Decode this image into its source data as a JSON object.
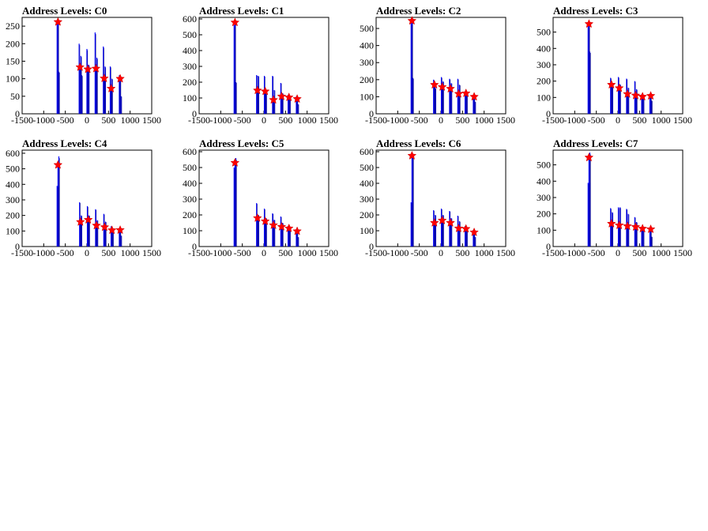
{
  "chart_data": [
    {
      "type": "line",
      "title": "Address Levels: C0",
      "xlim": [
        -1500,
        1500
      ],
      "ylim": [
        0,
        275
      ],
      "xticks": [
        -1500,
        -1000,
        -500,
        0,
        500,
        1000,
        1500
      ],
      "yticks": [
        0,
        50,
        100,
        150,
        200,
        250
      ],
      "peaks": [
        [
          -670,
          262
        ],
        [
          -160,
          133
        ],
        [
          20,
          127
        ],
        [
          210,
          129
        ],
        [
          400,
          101
        ],
        [
          560,
          72
        ],
        [
          770,
          100
        ]
      ],
      "spikes": [
        [
          -690,
          255
        ],
        [
          -670,
          262
        ],
        [
          -650,
          120
        ],
        [
          -180,
          200
        ],
        [
          -160,
          133
        ],
        [
          -140,
          165
        ],
        [
          -120,
          110
        ],
        [
          0,
          185
        ],
        [
          20,
          127
        ],
        [
          40,
          140
        ],
        [
          190,
          232
        ],
        [
          210,
          129
        ],
        [
          230,
          160
        ],
        [
          380,
          192
        ],
        [
          400,
          101
        ],
        [
          420,
          135
        ],
        [
          540,
          135
        ],
        [
          560,
          72
        ],
        [
          580,
          100
        ],
        [
          750,
          110
        ],
        [
          770,
          100
        ],
        [
          790,
          50
        ]
      ]
    },
    {
      "type": "line",
      "title": "Address Levels: C1",
      "xlim": [
        -1500,
        1500
      ],
      "ylim": [
        0,
        610
      ],
      "xticks": [
        -1500,
        -1000,
        -500,
        0,
        500,
        1000,
        1500
      ],
      "yticks": [
        0,
        100,
        200,
        300,
        400,
        500,
        600
      ],
      "peaks": [
        [
          -670,
          578
        ],
        [
          -150,
          148
        ],
        [
          30,
          142
        ],
        [
          220,
          88
        ],
        [
          410,
          110
        ],
        [
          580,
          104
        ],
        [
          770,
          94
        ]
      ],
      "spikes": [
        [
          -690,
          560
        ],
        [
          -670,
          578
        ],
        [
          -650,
          200
        ],
        [
          -170,
          245
        ],
        [
          -150,
          148
        ],
        [
          -130,
          240
        ],
        [
          10,
          240
        ],
        [
          30,
          142
        ],
        [
          50,
          150
        ],
        [
          200,
          240
        ],
        [
          220,
          88
        ],
        [
          240,
          150
        ],
        [
          390,
          195
        ],
        [
          410,
          110
        ],
        [
          430,
          130
        ],
        [
          560,
          120
        ],
        [
          580,
          104
        ],
        [
          600,
          95
        ],
        [
          750,
          110
        ],
        [
          770,
          94
        ],
        [
          790,
          60
        ]
      ]
    },
    {
      "type": "line",
      "title": "Address Levels: C2",
      "xlim": [
        -1500,
        1500
      ],
      "ylim": [
        0,
        565
      ],
      "xticks": [
        -1500,
        -1000,
        -500,
        0,
        500,
        1000,
        1500
      ],
      "yticks": [
        0,
        100,
        200,
        300,
        400,
        500
      ],
      "peaks": [
        [
          -670,
          545
        ],
        [
          -150,
          170
        ],
        [
          30,
          157
        ],
        [
          220,
          147
        ],
        [
          410,
          117
        ],
        [
          580,
          120
        ],
        [
          770,
          100
        ]
      ],
      "spikes": [
        [
          -690,
          530
        ],
        [
          -670,
          545
        ],
        [
          -650,
          210
        ],
        [
          -170,
          200
        ],
        [
          -150,
          170
        ],
        [
          -130,
          150
        ],
        [
          10,
          215
        ],
        [
          30,
          157
        ],
        [
          50,
          190
        ],
        [
          200,
          205
        ],
        [
          220,
          147
        ],
        [
          240,
          180
        ],
        [
          390,
          205
        ],
        [
          410,
          117
        ],
        [
          430,
          170
        ],
        [
          560,
          130
        ],
        [
          580,
          120
        ],
        [
          600,
          110
        ],
        [
          750,
          110
        ],
        [
          770,
          100
        ],
        [
          790,
          70
        ]
      ]
    },
    {
      "type": "line",
      "title": "Address Levels: C3",
      "xlim": [
        -1500,
        1500
      ],
      "ylim": [
        0,
        590
      ],
      "xticks": [
        -1500,
        -1000,
        -500,
        0,
        500,
        1000,
        1500
      ],
      "yticks": [
        0,
        100,
        200,
        300,
        400,
        500
      ],
      "peaks": [
        [
          -670,
          550
        ],
        [
          -150,
          178
        ],
        [
          30,
          157
        ],
        [
          220,
          121
        ],
        [
          410,
          112
        ],
        [
          570,
          105
        ],
        [
          760,
          110
        ]
      ],
      "spikes": [
        [
          -690,
          540
        ],
        [
          -670,
          550
        ],
        [
          -650,
          380
        ],
        [
          -170,
          220
        ],
        [
          -150,
          178
        ],
        [
          -130,
          180
        ],
        [
          10,
          225
        ],
        [
          30,
          157
        ],
        [
          50,
          180
        ],
        [
          200,
          215
        ],
        [
          220,
          121
        ],
        [
          240,
          160
        ],
        [
          390,
          200
        ],
        [
          410,
          112
        ],
        [
          430,
          150
        ],
        [
          550,
          120
        ],
        [
          570,
          105
        ],
        [
          590,
          100
        ],
        [
          740,
          120
        ],
        [
          760,
          110
        ],
        [
          780,
          80
        ]
      ]
    },
    {
      "type": "line",
      "title": "Address Levels: C4",
      "xlim": [
        -1500,
        1500
      ],
      "ylim": [
        0,
        620
      ],
      "xticks": [
        -1500,
        -1000,
        -500,
        0,
        500,
        1000,
        1500
      ],
      "yticks": [
        0,
        100,
        200,
        300,
        400,
        500,
        600
      ],
      "peaks": [
        [
          -670,
          525
        ],
        [
          -150,
          158
        ],
        [
          30,
          172
        ],
        [
          220,
          135
        ],
        [
          410,
          125
        ],
        [
          580,
          105
        ],
        [
          770,
          106
        ]
      ],
      "spikes": [
        [
          -690,
          390
        ],
        [
          -670,
          525
        ],
        [
          -650,
          580
        ],
        [
          -170,
          285
        ],
        [
          -150,
          158
        ],
        [
          -130,
          200
        ],
        [
          10,
          260
        ],
        [
          30,
          172
        ],
        [
          50,
          200
        ],
        [
          200,
          240
        ],
        [
          220,
          135
        ],
        [
          240,
          170
        ],
        [
          390,
          210
        ],
        [
          410,
          125
        ],
        [
          430,
          160
        ],
        [
          560,
          130
        ],
        [
          580,
          105
        ],
        [
          600,
          110
        ],
        [
          750,
          120
        ],
        [
          770,
          106
        ],
        [
          790,
          70
        ]
      ]
    },
    {
      "type": "line",
      "title": "Address Levels: C5",
      "xlim": [
        -1500,
        1500
      ],
      "ylim": [
        0,
        610
      ],
      "xticks": [
        -1500,
        -1000,
        -500,
        0,
        500,
        1000,
        1500
      ],
      "yticks": [
        0,
        100,
        200,
        300,
        400,
        500,
        600
      ],
      "peaks": [
        [
          -670,
          530
        ],
        [
          -150,
          180
        ],
        [
          30,
          160
        ],
        [
          220,
          135
        ],
        [
          410,
          125
        ],
        [
          580,
          115
        ],
        [
          770,
          97
        ]
      ],
      "spikes": [
        [
          -690,
          500
        ],
        [
          -670,
          530
        ],
        [
          -650,
          560
        ],
        [
          -170,
          275
        ],
        [
          -150,
          180
        ],
        [
          -130,
          200
        ],
        [
          10,
          240
        ],
        [
          30,
          160
        ],
        [
          50,
          180
        ],
        [
          200,
          210
        ],
        [
          220,
          135
        ],
        [
          240,
          170
        ],
        [
          390,
          190
        ],
        [
          410,
          125
        ],
        [
          430,
          150
        ],
        [
          560,
          130
        ],
        [
          580,
          115
        ],
        [
          600,
          100
        ],
        [
          750,
          110
        ],
        [
          770,
          97
        ],
        [
          790,
          60
        ]
      ]
    },
    {
      "type": "line",
      "title": "Address Levels: C6",
      "xlim": [
        -1500,
        1500
      ],
      "ylim": [
        0,
        610
      ],
      "xticks": [
        -1500,
        -1000,
        -500,
        0,
        500,
        1000,
        1500
      ],
      "yticks": [
        0,
        100,
        200,
        300,
        400,
        500,
        600
      ],
      "peaks": [
        [
          -670,
          575
        ],
        [
          -150,
          150
        ],
        [
          30,
          165
        ],
        [
          220,
          150
        ],
        [
          410,
          115
        ],
        [
          580,
          112
        ],
        [
          770,
          90
        ]
      ],
      "spikes": [
        [
          -690,
          280
        ],
        [
          -670,
          575
        ],
        [
          -650,
          580
        ],
        [
          -170,
          230
        ],
        [
          -150,
          150
        ],
        [
          -130,
          200
        ],
        [
          10,
          240
        ],
        [
          30,
          165
        ],
        [
          50,
          200
        ],
        [
          200,
          225
        ],
        [
          220,
          150
        ],
        [
          240,
          180
        ],
        [
          390,
          195
        ],
        [
          410,
          115
        ],
        [
          430,
          160
        ],
        [
          560,
          130
        ],
        [
          580,
          112
        ],
        [
          600,
          100
        ],
        [
          750,
          105
        ],
        [
          770,
          90
        ],
        [
          790,
          60
        ]
      ]
    },
    {
      "type": "line",
      "title": "Address Levels: C7",
      "xlim": [
        -1500,
        1500
      ],
      "ylim": [
        0,
        590
      ],
      "xticks": [
        -1500,
        -1000,
        -500,
        0,
        500,
        1000,
        1500
      ],
      "yticks": [
        0,
        100,
        200,
        300,
        400,
        500
      ],
      "peaks": [
        [
          -670,
          545
        ],
        [
          -150,
          140
        ],
        [
          30,
          130
        ],
        [
          220,
          125
        ],
        [
          410,
          120
        ],
        [
          570,
          110
        ],
        [
          760,
          106
        ]
      ],
      "spikes": [
        [
          -690,
          390
        ],
        [
          -670,
          545
        ],
        [
          -650,
          575
        ],
        [
          -170,
          235
        ],
        [
          -150,
          140
        ],
        [
          -130,
          210
        ],
        [
          10,
          240
        ],
        [
          30,
          130
        ],
        [
          50,
          240
        ],
        [
          200,
          230
        ],
        [
          220,
          125
        ],
        [
          240,
          200
        ],
        [
          390,
          180
        ],
        [
          410,
          120
        ],
        [
          430,
          150
        ],
        [
          550,
          120
        ],
        [
          570,
          110
        ],
        [
          590,
          100
        ],
        [
          740,
          115
        ],
        [
          760,
          106
        ],
        [
          780,
          60
        ]
      ]
    }
  ]
}
